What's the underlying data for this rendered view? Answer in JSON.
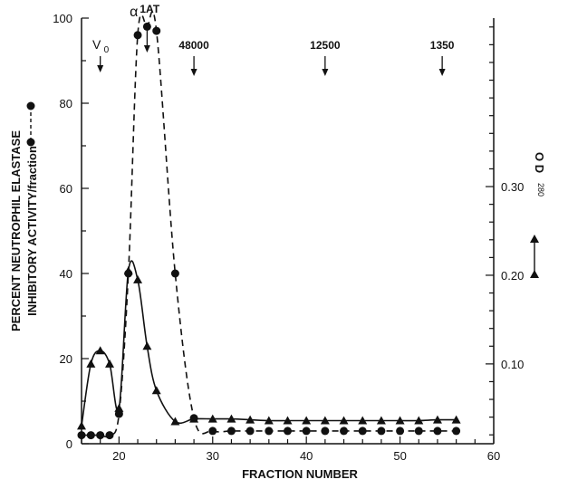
{
  "chart_data": {
    "type": "line",
    "xlabel": "FRACTION NUMBER",
    "ylabel": [
      "PERCENT NEUTROPHIL ELASTASE",
      "INHIBITORY ACTIVITY/fraction"
    ],
    "y2label": "O D 280",
    "y2label_main": "O D",
    "y2label_sub": "280",
    "xlim": [
      16,
      60
    ],
    "ylim": [
      0,
      100
    ],
    "y2lim": [
      0.01,
      0.49
    ],
    "x_ticks": [
      "20",
      "30",
      "40",
      "50",
      "60"
    ],
    "x_tick_values": [
      20,
      30,
      40,
      50,
      60
    ],
    "y_ticks": [
      "0",
      "20",
      "40",
      "60",
      "80",
      "100"
    ],
    "y_tick_values": [
      0,
      20,
      40,
      60,
      80,
      100
    ],
    "y2_ticks": [
      "0.10",
      "0.20",
      "0.30"
    ],
    "y2_tick_values": [
      0.1,
      0.2,
      0.3
    ],
    "grid": false,
    "series": [
      {
        "axis": "left",
        "marker": "circle",
        "line_style": "dashed",
        "x": [
          16,
          17,
          18,
          19,
          20,
          21,
          22,
          23,
          24,
          26,
          28,
          30,
          32,
          34,
          36,
          38,
          40,
          42,
          44,
          46,
          48,
          50,
          52,
          54,
          56
        ],
        "y": [
          2,
          2,
          2,
          2,
          7,
          40,
          96,
          98,
          97,
          40,
          6,
          3,
          3,
          3,
          3,
          3,
          3,
          3,
          3,
          3,
          3,
          3,
          3,
          3,
          3
        ],
        "color": "#111111"
      },
      {
        "axis": "right",
        "marker": "triangle",
        "line_style": "solid",
        "x": [
          16,
          17,
          18,
          19,
          20,
          21,
          22,
          23,
          24,
          26,
          28,
          30,
          32,
          34,
          36,
          38,
          40,
          42,
          44,
          46,
          48,
          50,
          52,
          54,
          56
        ],
        "y": [
          0.03,
          0.1,
          0.115,
          0.1,
          0.05,
          0.205,
          0.195,
          0.12,
          0.07,
          0.035,
          0.038,
          0.038,
          0.038,
          0.037,
          0.036,
          0.036,
          0.036,
          0.036,
          0.036,
          0.036,
          0.036,
          0.036,
          0.036,
          0.037,
          0.037
        ],
        "color": "#111111"
      }
    ],
    "markers": [
      {
        "label": "V",
        "sub": "0",
        "x": 18
      },
      {
        "label": "α",
        "sup": "1AT",
        "x": 23
      },
      {
        "label": "48000",
        "x": 28
      },
      {
        "label": "12500",
        "x": 42
      },
      {
        "label": "1350",
        "x": 54.5
      }
    ],
    "legend_left": "circle dashed",
    "legend_right": "triangle solid"
  }
}
